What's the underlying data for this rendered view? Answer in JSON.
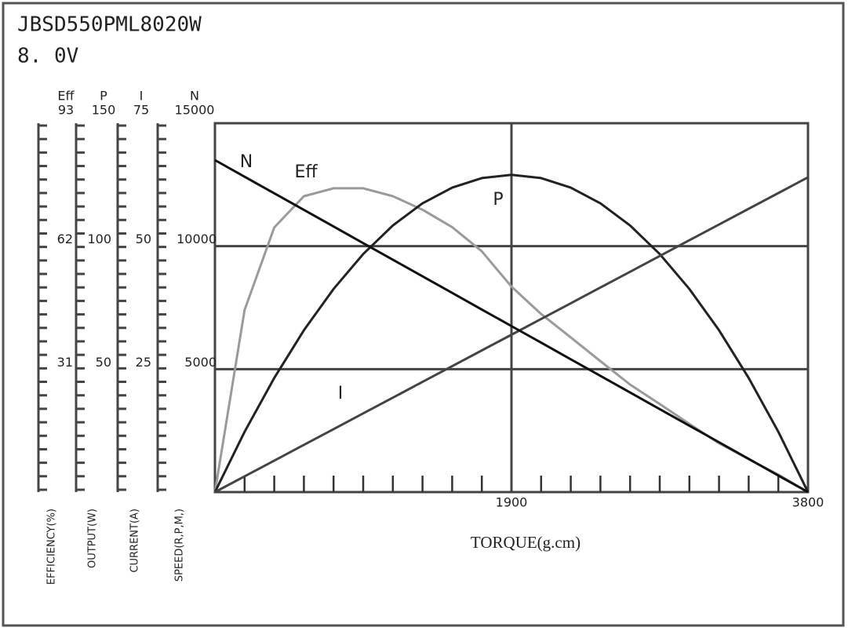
{
  "chart_data": {
    "type": "line",
    "title": "JBSD550PML8020W",
    "subtitle": "8. 0V",
    "xlabel": "TORQUE(g.cm)",
    "xlim": [
      0,
      3800
    ],
    "xticks": [
      1900,
      3800
    ],
    "xminorticks": [
      190,
      380,
      570,
      760,
      950,
      1140,
      1330,
      1520,
      1710,
      2090,
      2280,
      2470,
      2660,
      2850,
      3040,
      3230,
      3420,
      3610
    ],
    "grid": true,
    "x": [
      0,
      190,
      380,
      570,
      760,
      950,
      1140,
      1330,
      1520,
      1710,
      1900,
      2090,
      2280,
      2470,
      2660,
      2850,
      3040,
      3230,
      3420,
      3610,
      3800
    ],
    "series": [
      {
        "name": "Eff",
        "axis_title": "EFFICIENCY(%)",
        "color": "#9a9a9a",
        "ylim": [
          0,
          93
        ],
        "yticks": [
          31,
          62,
          93
        ],
        "values": [
          0,
          45.9,
          66.7,
          74.6,
          76.6,
          76.6,
          74.6,
          71.2,
          66.8,
          60.7,
          51.8,
          44.9,
          39.0,
          33.0,
          27.1,
          22.2,
          17.2,
          12.3,
          8.3,
          4.4,
          0
        ]
      },
      {
        "name": "P",
        "axis_title": "OUTPUT(W)",
        "color": "#222222",
        "ylim": [
          0,
          150
        ],
        "yticks": [
          50,
          100,
          150
        ],
        "values": [
          0,
          24.5,
          46.4,
          65.8,
          82.6,
          96.8,
          108.4,
          117.4,
          123.8,
          127.7,
          129,
          127.7,
          123.8,
          117.4,
          108.4,
          96.8,
          82.6,
          65.8,
          46.4,
          24.5,
          0
        ]
      },
      {
        "name": "I",
        "axis_title": "CURRENT(A)",
        "color": "#444444",
        "ylim": [
          0,
          75
        ],
        "yticks": [
          25,
          50,
          75
        ],
        "values": [
          0,
          3.2,
          6.4,
          9.6,
          12.8,
          16,
          19.2,
          22.4,
          25.6,
          28.8,
          32,
          35.2,
          38.4,
          41.6,
          44.8,
          48,
          51.2,
          54.4,
          57.6,
          60.8,
          64
        ]
      },
      {
        "name": "N",
        "axis_title": "SPEED(R,P,M,)",
        "color": "#111111",
        "ylim": [
          0,
          15000
        ],
        "yticks": [
          5000,
          10000,
          15000
        ],
        "values": [
          13500,
          12825,
          12150,
          11475,
          10800,
          10125,
          9450,
          8775,
          8100,
          7425,
          6750,
          6075,
          5400,
          4725,
          4050,
          3375,
          2700,
          2025,
          1350,
          675,
          0
        ]
      }
    ]
  }
}
